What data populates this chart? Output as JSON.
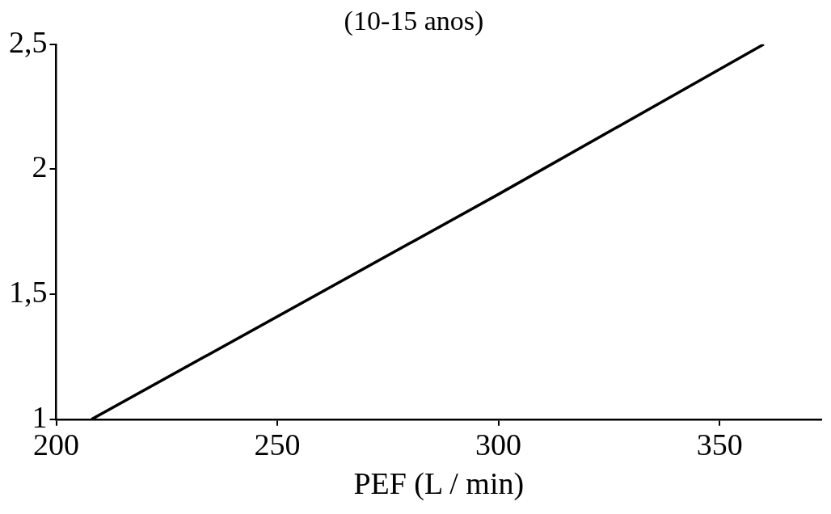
{
  "chart_data": {
    "type": "line",
    "title": "(10-15 anos)",
    "xlabel": "PEF (L / min)",
    "x": [
      208,
      300,
      360
    ],
    "series": [
      {
        "color": "#000000",
        "values": [
          1,
          1.9,
          2.5
        ]
      }
    ],
    "xlim": [
      200,
      373
    ],
    "xticks": [
      200,
      250,
      300,
      350
    ],
    "ylim": [
      1,
      2.5
    ],
    "yticks": [
      {
        "value": 1,
        "label": "1"
      },
      {
        "value": 1.5,
        "label": "1,5"
      },
      {
        "value": 2,
        "label": "2"
      },
      {
        "value": 2.5,
        "label": "2,5"
      }
    ],
    "grid": false,
    "legend": false,
    "marker": "none",
    "line_style": "solid"
  }
}
